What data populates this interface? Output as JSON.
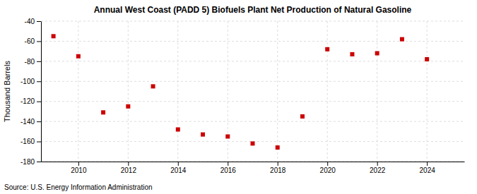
{
  "chart_data": {
    "type": "scatter",
    "title": "Annual West Coast (PADD 5) Biofuels Plant Net Production of Natural Gasoline",
    "ylabel": "Thousand Barrels",
    "annotation": "Source: U.S. Energy Information Administration",
    "x": [
      2009,
      2010,
      2011,
      2012,
      2013,
      2014,
      2015,
      2016,
      2017,
      2018,
      2019,
      2020,
      2021,
      2022,
      2023,
      2024
    ],
    "values": [
      -55,
      -75,
      -131,
      -125,
      -105,
      -148,
      -153,
      -155,
      -162,
      -166,
      -135,
      -68,
      -73,
      -72,
      -58,
      -78
    ],
    "xlim": [
      2008.5,
      2025.5
    ],
    "xticks": [
      2010,
      2012,
      2014,
      2016,
      2018,
      2020,
      2022,
      2024
    ],
    "ylim": [
      -180,
      -40
    ],
    "yticks": [
      -180,
      -160,
      -140,
      -120,
      -100,
      -80,
      -60,
      -40
    ],
    "color": "#cc0000",
    "marker": "square",
    "grid": true
  }
}
